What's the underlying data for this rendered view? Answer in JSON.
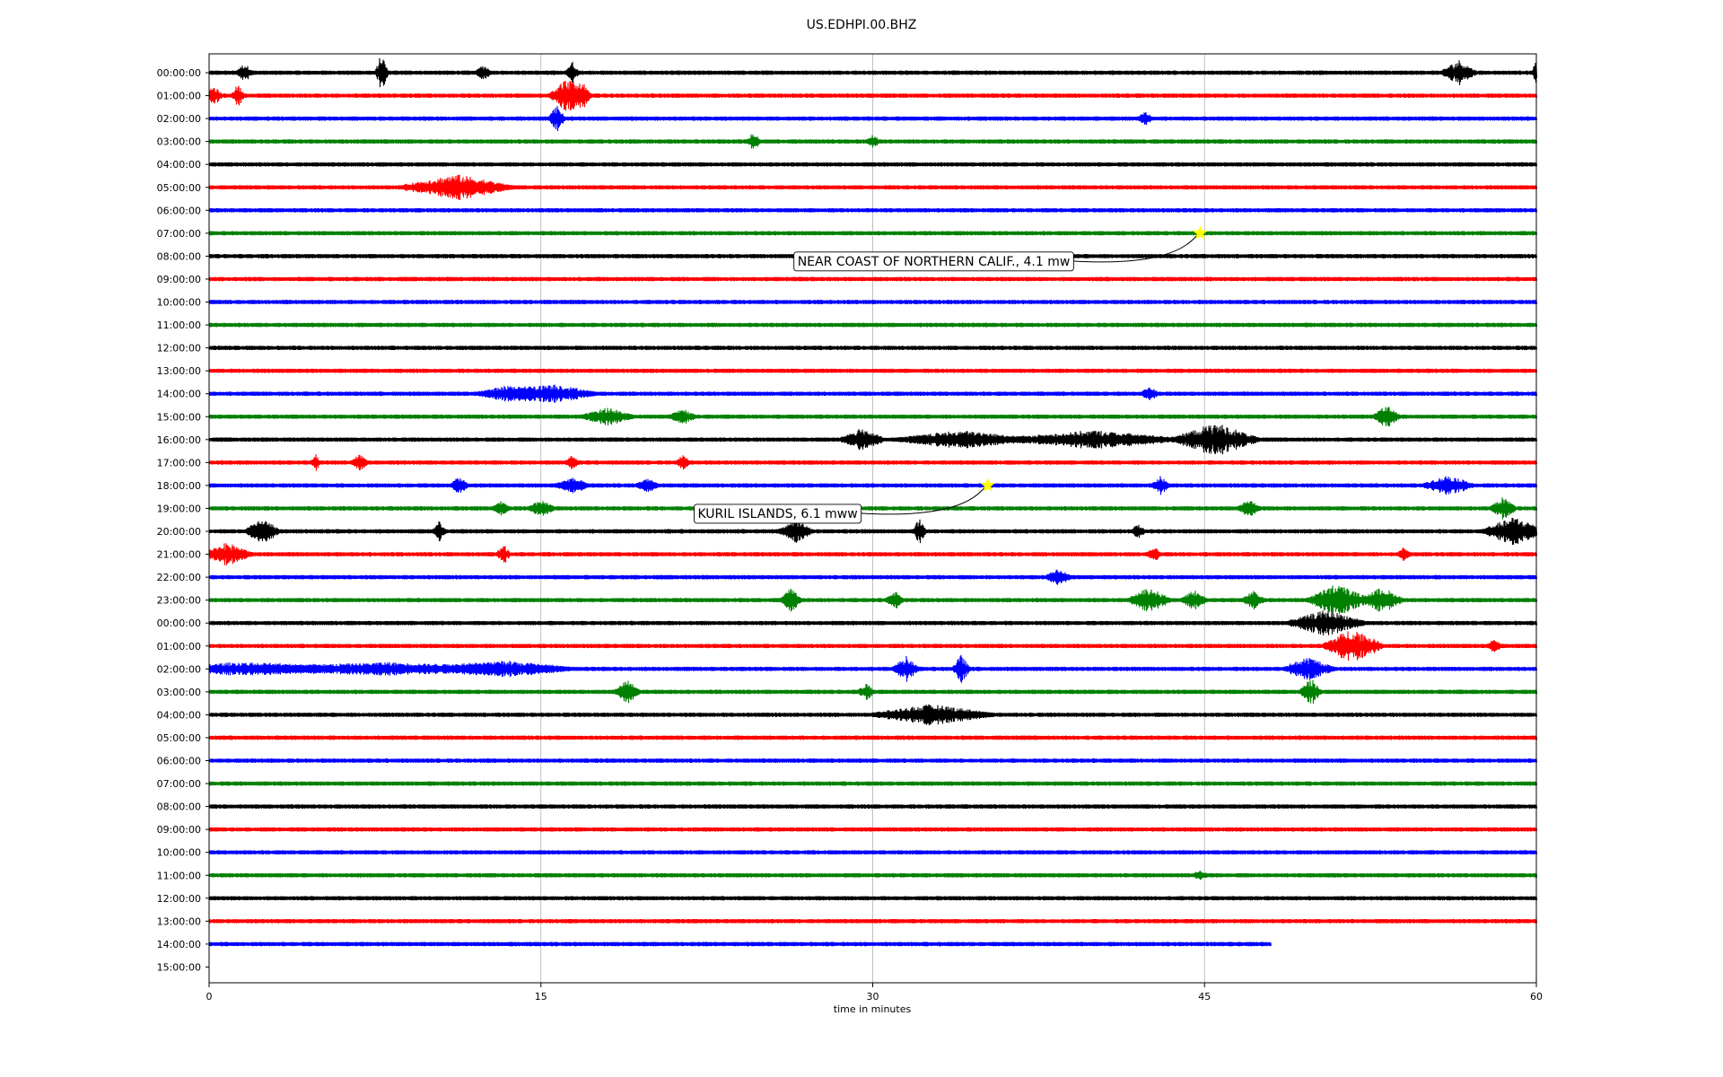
{
  "chart_data": {
    "type": "line",
    "title": "US.EDHPI.00.BHZ",
    "xlabel": "time in minutes",
    "ylabel": "",
    "xlim": [
      0,
      60
    ],
    "x_ticks": [
      0,
      15,
      30,
      45,
      60
    ],
    "x_tick_labels": [
      "0",
      "15",
      "30",
      "45",
      "60"
    ],
    "grid": "vertical",
    "trace_colors": [
      "#000000",
      "#ff0000",
      "#0000ff",
      "#008000"
    ],
    "row_labels": [
      "00:00:00",
      "01:00:00",
      "02:00:00",
      "03:00:00",
      "04:00:00",
      "05:00:00",
      "06:00:00",
      "07:00:00",
      "08:00:00",
      "09:00:00",
      "10:00:00",
      "11:00:00",
      "12:00:00",
      "13:00:00",
      "14:00:00",
      "15:00:00",
      "16:00:00",
      "17:00:00",
      "18:00:00",
      "19:00:00",
      "20:00:00",
      "21:00:00",
      "22:00:00",
      "23:00:00",
      "00:00:00",
      "01:00:00",
      "02:00:00",
      "03:00:00",
      "04:00:00",
      "05:00:00",
      "06:00:00",
      "07:00:00",
      "08:00:00",
      "09:00:00",
      "10:00:00",
      "11:00:00",
      "12:00:00",
      "13:00:00",
      "14:00:00",
      "15:00:00"
    ],
    "last_trace_end_minute": 48,
    "events": [
      {
        "label": "NEAR COAST OF NORTHERN CALIF., 4.1 mw",
        "row": 7,
        "minute": 44.8,
        "marker_color": "#ffff00"
      },
      {
        "label": "KURIL ISLANDS, 6.1 mww",
        "row": 18,
        "minute": 35.2,
        "marker_color": "#ffff00"
      }
    ],
    "bursts": [
      {
        "row": 0,
        "minute": 1.6,
        "amp": 0.6,
        "dur": 0.4
      },
      {
        "row": 0,
        "minute": 7.8,
        "amp": 1.4,
        "dur": 0.3
      },
      {
        "row": 0,
        "minute": 12.4,
        "amp": 0.5,
        "dur": 0.4
      },
      {
        "row": 0,
        "minute": 16.4,
        "amp": 0.8,
        "dur": 0.3
      },
      {
        "row": 0,
        "minute": 56.5,
        "amp": 0.9,
        "dur": 0.8
      },
      {
        "row": 0,
        "minute": 60.0,
        "amp": 0.8,
        "dur": 0.2
      },
      {
        "row": 1,
        "minute": 0.2,
        "amp": 0.6,
        "dur": 0.4
      },
      {
        "row": 1,
        "minute": 1.3,
        "amp": 0.8,
        "dur": 0.3
      },
      {
        "row": 1,
        "minute": 16.2,
        "amp": 1.3,
        "dur": 0.9
      },
      {
        "row": 1,
        "minute": 16.9,
        "amp": 0.7,
        "dur": 0.4
      },
      {
        "row": 2,
        "minute": 15.7,
        "amp": 0.9,
        "dur": 0.4
      },
      {
        "row": 2,
        "minute": 42.3,
        "amp": 0.5,
        "dur": 0.3
      },
      {
        "row": 3,
        "minute": 24.6,
        "amp": 0.7,
        "dur": 0.3
      },
      {
        "row": 3,
        "minute": 30.0,
        "amp": 0.4,
        "dur": 0.3
      },
      {
        "row": 5,
        "minute": 11.2,
        "amp": 0.9,
        "dur": 2.6
      },
      {
        "row": 14,
        "minute": 13.5,
        "amp": 0.5,
        "dur": 1.5
      },
      {
        "row": 14,
        "minute": 15.5,
        "amp": 0.7,
        "dur": 2.0
      },
      {
        "row": 14,
        "minute": 42.5,
        "amp": 0.5,
        "dur": 0.4
      },
      {
        "row": 15,
        "minute": 18.0,
        "amp": 0.6,
        "dur": 1.2
      },
      {
        "row": 15,
        "minute": 21.4,
        "amp": 0.5,
        "dur": 0.6
      },
      {
        "row": 15,
        "minute": 53.2,
        "amp": 0.9,
        "dur": 0.6
      },
      {
        "row": 16,
        "minute": 29.5,
        "amp": 0.8,
        "dur": 1.0
      },
      {
        "row": 16,
        "minute": 34.0,
        "amp": 0.6,
        "dur": 3.0
      },
      {
        "row": 16,
        "minute": 40.0,
        "amp": 0.6,
        "dur": 4.0
      },
      {
        "row": 16,
        "minute": 45.5,
        "amp": 1.2,
        "dur": 2.0
      },
      {
        "row": 17,
        "minute": 4.8,
        "amp": 0.6,
        "dur": 0.2
      },
      {
        "row": 17,
        "minute": 6.8,
        "amp": 0.6,
        "dur": 0.4
      },
      {
        "row": 17,
        "minute": 16.4,
        "amp": 0.5,
        "dur": 0.3
      },
      {
        "row": 17,
        "minute": 21.4,
        "amp": 0.5,
        "dur": 0.3
      },
      {
        "row": 18,
        "minute": 11.3,
        "amp": 0.6,
        "dur": 0.4
      },
      {
        "row": 18,
        "minute": 16.4,
        "amp": 0.5,
        "dur": 0.8
      },
      {
        "row": 18,
        "minute": 19.8,
        "amp": 0.5,
        "dur": 0.5
      },
      {
        "row": 18,
        "minute": 43.0,
        "amp": 0.6,
        "dur": 0.4
      },
      {
        "row": 18,
        "minute": 56.0,
        "amp": 0.7,
        "dur": 1.2
      },
      {
        "row": 19,
        "minute": 13.2,
        "amp": 0.5,
        "dur": 0.4
      },
      {
        "row": 19,
        "minute": 15.0,
        "amp": 0.6,
        "dur": 0.6
      },
      {
        "row": 19,
        "minute": 47.0,
        "amp": 0.6,
        "dur": 0.5
      },
      {
        "row": 19,
        "minute": 58.5,
        "amp": 0.8,
        "dur": 0.6
      },
      {
        "row": 20,
        "minute": 2.4,
        "amp": 0.9,
        "dur": 0.8
      },
      {
        "row": 20,
        "minute": 10.4,
        "amp": 0.7,
        "dur": 0.3
      },
      {
        "row": 20,
        "minute": 26.5,
        "amp": 0.8,
        "dur": 0.8
      },
      {
        "row": 20,
        "minute": 32.1,
        "amp": 0.9,
        "dur": 0.3
      },
      {
        "row": 20,
        "minute": 42.0,
        "amp": 0.5,
        "dur": 0.3
      },
      {
        "row": 20,
        "minute": 59.0,
        "amp": 1.0,
        "dur": 1.5
      },
      {
        "row": 21,
        "minute": 0.8,
        "amp": 0.8,
        "dur": 1.2
      },
      {
        "row": 21,
        "minute": 13.3,
        "amp": 0.7,
        "dur": 0.3
      },
      {
        "row": 21,
        "minute": 42.7,
        "amp": 0.5,
        "dur": 0.3
      },
      {
        "row": 21,
        "minute": 54.0,
        "amp": 0.4,
        "dur": 0.3
      },
      {
        "row": 22,
        "minute": 38.4,
        "amp": 0.5,
        "dur": 0.6
      },
      {
        "row": 23,
        "minute": 26.3,
        "amp": 0.8,
        "dur": 0.5
      },
      {
        "row": 23,
        "minute": 31.0,
        "amp": 0.6,
        "dur": 0.4
      },
      {
        "row": 23,
        "minute": 42.5,
        "amp": 0.9,
        "dur": 1.0
      },
      {
        "row": 23,
        "minute": 44.5,
        "amp": 0.7,
        "dur": 0.6
      },
      {
        "row": 23,
        "minute": 47.2,
        "amp": 0.6,
        "dur": 0.5
      },
      {
        "row": 23,
        "minute": 51.0,
        "amp": 1.2,
        "dur": 1.4
      },
      {
        "row": 23,
        "minute": 53.0,
        "amp": 0.9,
        "dur": 1.0
      },
      {
        "row": 24,
        "minute": 50.5,
        "amp": 0.9,
        "dur": 1.8
      },
      {
        "row": 25,
        "minute": 51.7,
        "amp": 1.3,
        "dur": 1.4
      },
      {
        "row": 25,
        "minute": 58.1,
        "amp": 0.5,
        "dur": 0.3
      },
      {
        "row": 26,
        "minute": 1.5,
        "amp": 0.4,
        "dur": 4.0
      },
      {
        "row": 26,
        "minute": 8.0,
        "amp": 0.4,
        "dur": 6.0
      },
      {
        "row": 26,
        "minute": 13.5,
        "amp": 0.5,
        "dur": 3.0
      },
      {
        "row": 26,
        "minute": 31.5,
        "amp": 0.9,
        "dur": 0.6
      },
      {
        "row": 26,
        "minute": 34.0,
        "amp": 1.0,
        "dur": 0.4
      },
      {
        "row": 26,
        "minute": 49.7,
        "amp": 0.8,
        "dur": 1.2
      },
      {
        "row": 27,
        "minute": 18.9,
        "amp": 0.8,
        "dur": 0.6
      },
      {
        "row": 27,
        "minute": 29.7,
        "amp": 0.5,
        "dur": 0.4
      },
      {
        "row": 27,
        "minute": 49.8,
        "amp": 1.0,
        "dur": 0.5
      },
      {
        "row": 28,
        "minute": 32.7,
        "amp": 0.7,
        "dur": 2.8
      },
      {
        "row": 35,
        "minute": 44.8,
        "amp": 0.3,
        "dur": 0.3
      }
    ]
  }
}
